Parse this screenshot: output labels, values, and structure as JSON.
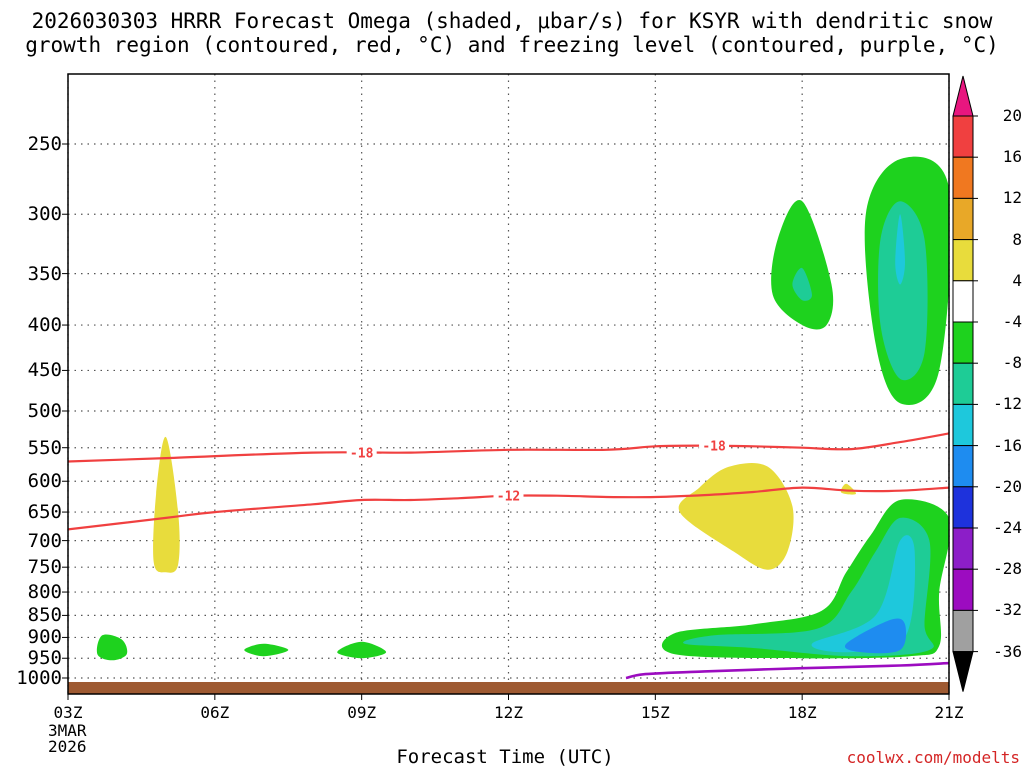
{
  "title": {
    "line1": "2026030303 HRRR Forecast Omega (shaded, μbar/s) for KSYR with dendritic snow",
    "line2": "growth region (contoured, red, °C) and freezing level (contoured, purple, °C)"
  },
  "credit": "coolwx.com/modelts",
  "chart_data": {
    "type": "heatmap",
    "xlabel": "Forecast Time (UTC)",
    "ylabel": "",
    "x_ticks": [
      "03Z",
      "06Z",
      "09Z",
      "12Z",
      "15Z",
      "18Z",
      "21Z"
    ],
    "x_range_hours": [
      3,
      21
    ],
    "x_start_label": [
      "3MAR",
      "2026"
    ],
    "y_axis": "pressure (hPa), inverted",
    "y_ticks": [
      "250",
      "300",
      "350",
      "400",
      "450",
      "500",
      "550",
      "600",
      "650",
      "700",
      "750",
      "800",
      "850",
      "900",
      "950",
      "1000"
    ],
    "grid": true,
    "colorbar": {
      "ticks": [
        "20",
        "16",
        "12",
        "8",
        "4",
        "-4",
        "-8",
        "-12",
        "-16",
        "-20",
        "-24",
        "-28",
        "-32",
        "-36"
      ],
      "colors": [
        "#e8167f",
        "#f04040",
        "#f07820",
        "#e8a828",
        "#e8dc3c",
        "#ffffff",
        "#1ed21e",
        "#1ecc96",
        "#1ec8dc",
        "#1e8cf0",
        "#1e32dc",
        "#8c1ec8",
        "#9c0cc0",
        "#a0a0a0",
        "#000000"
      ]
    },
    "shaded_regions": [
      {
        "omega_range": [
          4,
          8
        ],
        "color": "#e8dc3c",
        "points": [
          [
            5.0,
            535
          ],
          [
            5.25,
            650
          ],
          [
            5.25,
            745
          ],
          [
            5.0,
            760
          ],
          [
            4.75,
            740
          ],
          [
            4.8,
            620
          ]
        ]
      },
      {
        "omega_range": [
          4,
          8
        ],
        "color": "#e8dc3c",
        "points": [
          [
            16.5,
            578
          ],
          [
            17.3,
            578
          ],
          [
            17.8,
            640
          ],
          [
            17.7,
            720
          ],
          [
            17.3,
            755
          ],
          [
            16.6,
            720
          ],
          [
            15.5,
            650
          ],
          [
            15.9,
            610
          ]
        ]
      },
      {
        "omega_range": [
          4,
          8
        ],
        "color": "#e8dc3c",
        "points": [
          [
            18.9,
            604
          ],
          [
            19.1,
            620
          ],
          [
            18.8,
            618
          ]
        ]
      },
      {
        "omega_range": [
          -8,
          -4
        ],
        "color": "#1ed21e",
        "points": [
          [
            3.7,
            895
          ],
          [
            4.1,
            905
          ],
          [
            4.2,
            940
          ],
          [
            3.9,
            955
          ],
          [
            3.6,
            940
          ]
        ]
      },
      {
        "omega_range": [
          -8,
          -4
        ],
        "color": "#1ed21e",
        "points": [
          [
            7.0,
            915
          ],
          [
            7.5,
            930
          ],
          [
            7.0,
            945
          ],
          [
            6.6,
            930
          ]
        ]
      },
      {
        "omega_range": [
          -8,
          -4
        ],
        "color": "#1ed21e",
        "points": [
          [
            9.0,
            910
          ],
          [
            9.5,
            935
          ],
          [
            9.0,
            950
          ],
          [
            8.5,
            935
          ]
        ]
      },
      {
        "omega_range": [
          -8,
          -4
        ],
        "color": "#1ed21e",
        "points": [
          [
            18.0,
            290
          ],
          [
            18.6,
            360
          ],
          [
            18.5,
            400
          ],
          [
            18.0,
            400
          ],
          [
            17.4,
            370
          ],
          [
            17.5,
            320
          ]
        ]
      },
      {
        "omega_range": [
          -8,
          -4
        ],
        "color": "#1ed21e",
        "points": [
          [
            20.0,
            260
          ],
          [
            21.0,
            280
          ],
          [
            20.8,
            450
          ],
          [
            20.0,
            490
          ],
          [
            19.5,
            420
          ],
          [
            19.3,
            300
          ]
        ]
      },
      {
        "omega_range": [
          -8,
          -4
        ],
        "color": "#1ed21e",
        "points": [
          [
            20.0,
            630
          ],
          [
            21.0,
            660
          ],
          [
            20.8,
            800
          ],
          [
            20.8,
            920
          ],
          [
            20.2,
            945
          ],
          [
            18.0,
            950
          ],
          [
            15.4,
            940
          ],
          [
            15.4,
            890
          ],
          [
            17.0,
            870
          ],
          [
            18.4,
            840
          ],
          [
            18.9,
            760
          ],
          [
            19.4,
            690
          ]
        ]
      },
      {
        "omega_range": [
          -12,
          -8
        ],
        "color": "#1ecc96",
        "points": [
          [
            20.0,
            290
          ],
          [
            20.5,
            320
          ],
          [
            20.5,
            430
          ],
          [
            20.0,
            460
          ],
          [
            19.6,
            400
          ],
          [
            19.6,
            320
          ]
        ]
      },
      {
        "omega_range": [
          -12,
          -8
        ],
        "color": "#1ecc96",
        "points": [
          [
            18.0,
            345
          ],
          [
            18.2,
            370
          ],
          [
            18.0,
            375
          ],
          [
            17.8,
            360
          ]
        ]
      },
      {
        "omega_range": [
          -12,
          -8
        ],
        "color": "#1ecc96",
        "points": [
          [
            20.0,
            660
          ],
          [
            20.6,
            700
          ],
          [
            20.5,
            870
          ],
          [
            20.6,
            930
          ],
          [
            19.0,
            945
          ],
          [
            17.0,
            925
          ],
          [
            15.6,
            915
          ],
          [
            16.2,
            895
          ],
          [
            18.3,
            880
          ],
          [
            19.0,
            800
          ],
          [
            19.5,
            720
          ]
        ]
      },
      {
        "omega_range": [
          -16,
          -12
        ],
        "color": "#1ec8dc",
        "points": [
          [
            20.0,
            300
          ],
          [
            20.1,
            340
          ],
          [
            20.0,
            360
          ],
          [
            19.9,
            340
          ]
        ]
      },
      {
        "omega_range": [
          -16,
          -12
        ],
        "color": "#1ec8dc",
        "points": [
          [
            20.0,
            700
          ],
          [
            20.3,
            720
          ],
          [
            20.1,
            900
          ],
          [
            19.0,
            935
          ],
          [
            18.2,
            915
          ],
          [
            19.5,
            850
          ]
        ]
      },
      {
        "omega_range": [
          -20,
          -16
        ],
        "color": "#1e8cf0",
        "points": [
          [
            19.8,
            860
          ],
          [
            20.1,
            870
          ],
          [
            20.0,
            930
          ],
          [
            19.2,
            935
          ],
          [
            18.9,
            915
          ]
        ]
      }
    ],
    "dgz_contours": [
      {
        "label": "-18",
        "color": "#f04040",
        "points": [
          [
            3,
            570
          ],
          [
            5,
            565
          ],
          [
            8,
            557
          ],
          [
            10,
            557
          ],
          [
            12,
            553
          ],
          [
            14,
            553
          ],
          [
            15,
            548
          ],
          [
            16,
            547
          ],
          [
            17,
            548
          ],
          [
            18,
            550
          ],
          [
            19,
            552
          ],
          [
            20,
            542
          ],
          [
            21,
            530
          ]
        ],
        "label_at": [
          [
            9.0,
            557
          ],
          [
            16.2,
            547
          ]
        ]
      },
      {
        "label": "-12",
        "color": "#f04040",
        "points": [
          [
            3,
            680
          ],
          [
            5,
            660
          ],
          [
            6,
            650
          ],
          [
            8,
            637
          ],
          [
            9,
            630
          ],
          [
            10,
            630
          ],
          [
            11,
            627
          ],
          [
            12,
            623
          ],
          [
            13,
            623
          ],
          [
            14,
            625
          ],
          [
            15,
            625
          ],
          [
            16,
            622
          ],
          [
            17,
            617
          ],
          [
            18,
            610
          ],
          [
            19,
            615
          ],
          [
            20,
            615
          ],
          [
            21,
            610
          ]
        ],
        "label_at": [
          [
            12.0,
            623
          ]
        ]
      }
    ],
    "freezing_level": {
      "color": "#9c0cc0",
      "points": [
        [
          14.4,
          1000
        ],
        [
          14.8,
          990
        ],
        [
          16,
          983
        ],
        [
          18,
          975
        ],
        [
          20,
          968
        ],
        [
          21,
          962
        ]
      ]
    },
    "terrain": {
      "color": "#9e5a32"
    }
  }
}
